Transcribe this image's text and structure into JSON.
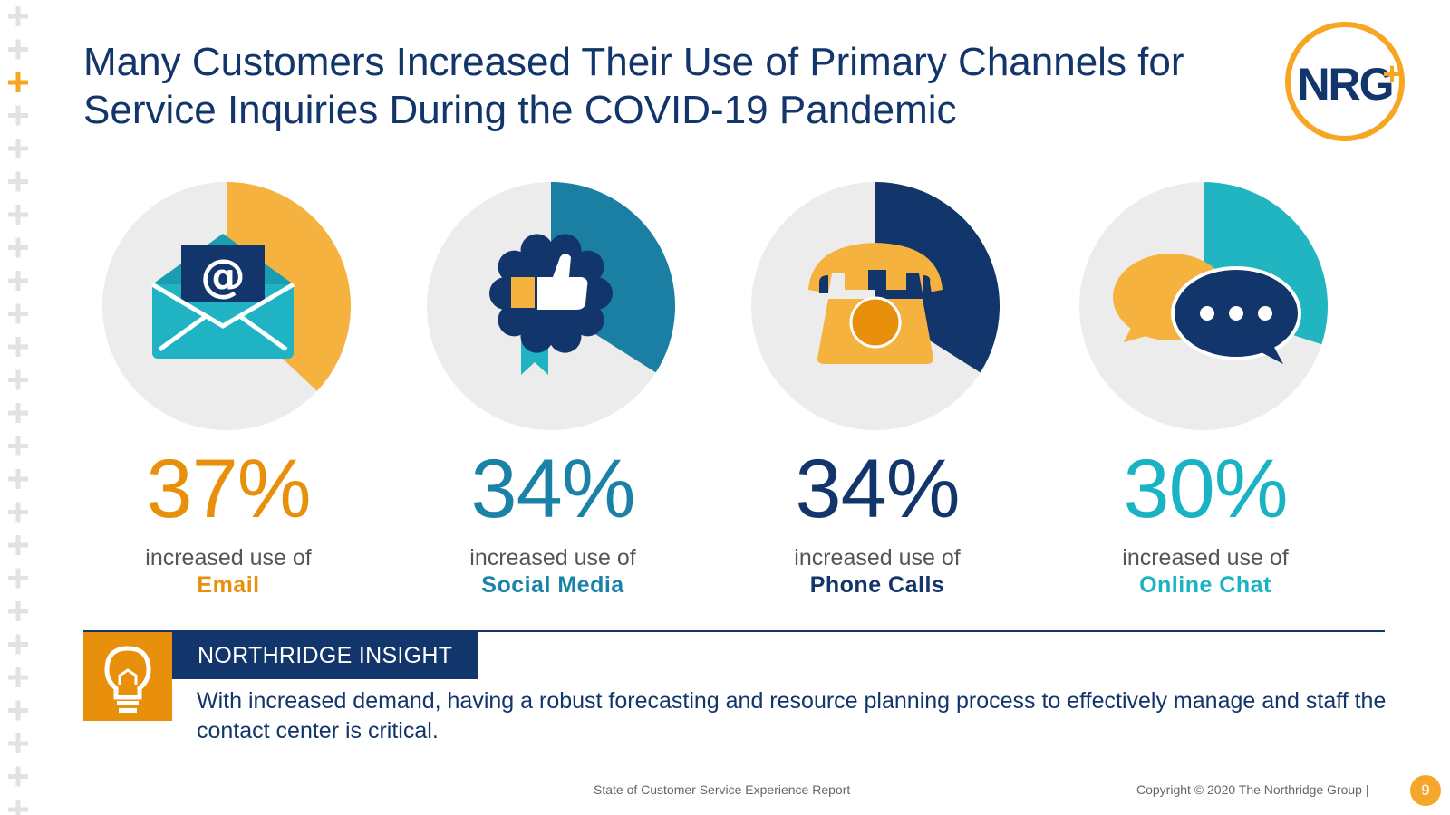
{
  "slide": {
    "title_line1": "Many Customers Increased Their Use of Primary Channels for",
    "title_line2": "Service Inquiries During the COVID-19 Pandemic",
    "logo_text": "NRG",
    "logo_plus": "+"
  },
  "chart_data": {
    "type": "pie",
    "title": "Many Customers Increased Their Use of Primary Channels for Service Inquiries During the COVID-19 Pandemic",
    "categories": [
      "Email",
      "Social Media",
      "Phone Calls",
      "Online Chat"
    ],
    "values": [
      37,
      34,
      34,
      30
    ],
    "unit": "%"
  },
  "stats": [
    {
      "value": 37,
      "percent_label": "37%",
      "caption": "increased use of",
      "channel": "Email",
      "color": "#e8900c",
      "wedge_color": "#f6b23f",
      "icon": "email-icon"
    },
    {
      "value": 34,
      "percent_label": "34%",
      "caption": "increased use of",
      "channel": "Social Media",
      "color": "#1a82a6",
      "wedge_color": "#1a7fa3",
      "icon": "thumbs-up-badge-icon"
    },
    {
      "value": 34,
      "percent_label": "34%",
      "caption": "increased use of",
      "channel": "Phone Calls",
      "color": "#12356b",
      "wedge_color": "#12356b",
      "icon": "rotary-phone-icon"
    },
    {
      "value": 30,
      "percent_label": "30%",
      "caption": "increased use of",
      "channel": "Online Chat",
      "color": "#19b3c3",
      "wedge_color": "#21b5c2",
      "icon": "chat-bubbles-icon"
    }
  ],
  "email_icon_symbol": "@",
  "insight": {
    "heading": "NORTHRIDGE INSIGHT",
    "body": "With increased demand, having a robust forecasting and resource planning process to effectively manage and staff the contact center is critical.",
    "icon": "lightbulb-icon"
  },
  "footer": {
    "report": "State of Customer Service Experience Report",
    "copyright": "Copyright © 2020 The Northridge Group  |",
    "page": "9"
  },
  "colors": {
    "navy": "#12356b",
    "orange": "#e8900c",
    "gold": "#f6b23f",
    "teal": "#1a82a6",
    "aqua": "#19b3c3",
    "circle_bg": "#ececec"
  }
}
